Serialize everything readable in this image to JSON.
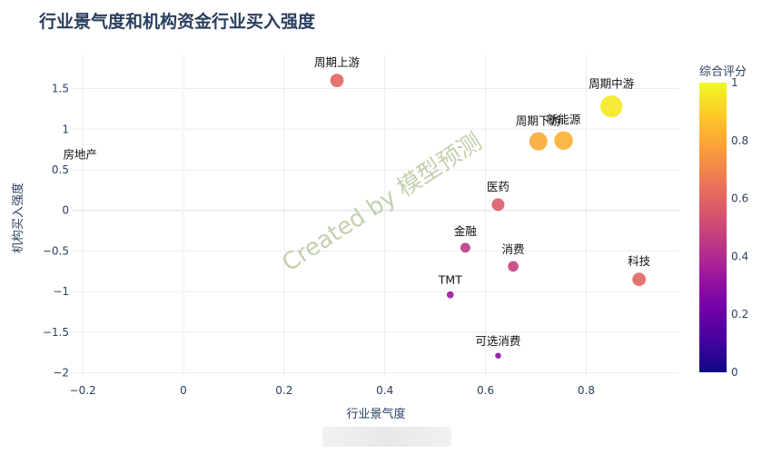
{
  "chart_data": {
    "type": "scatter",
    "title": "行业景气度和机构资金行业买入强度",
    "xlabel": "行业景气度",
    "ylabel": "机构买入强度",
    "xlim": [
      -0.22,
      0.985
    ],
    "ylim": [
      -2.05,
      1.92
    ],
    "x_ticks": [
      -0.2,
      0,
      0.2,
      0.4,
      0.6,
      0.8
    ],
    "x_tick_labels": [
      "−0.2",
      "0",
      "0.2",
      "0.4",
      "0.6",
      "0.8"
    ],
    "y_ticks": [
      1.5,
      1,
      0.5,
      0,
      -0.5,
      -1,
      -1.5,
      -2
    ],
    "y_tick_labels": [
      "1.5",
      "1",
      "0.5",
      "0",
      "−0.5",
      "−1",
      "−1.5",
      "−2"
    ],
    "grid": true,
    "colorbar": {
      "title": "综合评分",
      "range": [
        0,
        1
      ],
      "ticks": [
        0,
        0.2,
        0.4,
        0.6,
        0.8,
        1
      ],
      "tick_labels": [
        "0",
        "0.2",
        "0.4",
        "0.6",
        "0.8",
        "1"
      ]
    },
    "points": [
      {
        "label": "周期上游",
        "x": 0.305,
        "y": 1.6,
        "score": 0.6,
        "size": 0.6
      },
      {
        "label": "周期中游",
        "x": 0.85,
        "y": 1.28,
        "score": 0.96,
        "size": 0.96
      },
      {
        "label": "周期下游",
        "x": 0.705,
        "y": 0.85,
        "score": 0.8,
        "size": 0.8
      },
      {
        "label": "新能源",
        "x": 0.755,
        "y": 0.86,
        "score": 0.82,
        "size": 0.82
      },
      {
        "label": "房地产",
        "x": -0.205,
        "y": 0.55,
        "score": 0.0,
        "size": 0.0
      },
      {
        "label": "医药",
        "x": 0.625,
        "y": 0.07,
        "score": 0.57,
        "size": 0.57
      },
      {
        "label": "金融",
        "x": 0.56,
        "y": -0.46,
        "score": 0.45,
        "size": 0.45
      },
      {
        "label": "消费",
        "x": 0.655,
        "y": -0.69,
        "score": 0.48,
        "size": 0.48
      },
      {
        "label": "科技",
        "x": 0.905,
        "y": -0.85,
        "score": 0.6,
        "size": 0.6
      },
      {
        "label": "TMT",
        "x": 0.53,
        "y": -1.04,
        "score": 0.33,
        "size": 0.33
      },
      {
        "label": "可选消费",
        "x": 0.625,
        "y": -1.79,
        "score": 0.28,
        "size": 0.28
      }
    ],
    "watermark": "Created by 模型预测"
  }
}
